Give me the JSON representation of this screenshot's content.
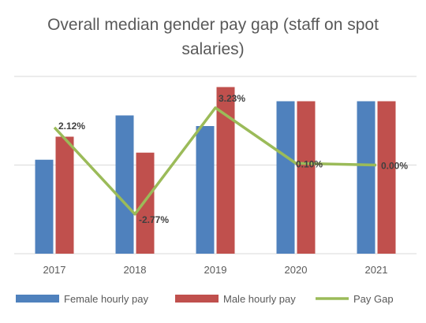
{
  "chart_data": {
    "type": "bar",
    "title": "Overall median gender pay gap (staff on spot salaries)",
    "title_lines": [
      "Overall median gender pay gap (staff on spot",
      "salaries)"
    ],
    "categories": [
      "2017",
      "2018",
      "2019",
      "2020",
      "2021"
    ],
    "series": [
      {
        "name": "Female hourly pay",
        "kind": "bar",
        "color": "#4f81bd",
        "values": [
          0.53,
          0.78,
          0.72,
          0.86,
          0.86
        ]
      },
      {
        "name": "Male hourly pay",
        "kind": "bar",
        "color": "#c0504d",
        "values": [
          0.66,
          0.57,
          0.94,
          0.86,
          0.86
        ]
      },
      {
        "name": "Pay Gap",
        "kind": "line",
        "color": "#9bbb59",
        "values": [
          2.12,
          -2.77,
          3.23,
          0.1,
          0.0
        ],
        "labels": [
          "2.12%",
          "-2.77%",
          "3.23%",
          "0.10%",
          "0.00%"
        ]
      }
    ],
    "bar_ylim": [
      0,
      1.0
    ],
    "line_ylim": [
      -5,
      5
    ],
    "grid": true,
    "legend_position": "bottom"
  }
}
